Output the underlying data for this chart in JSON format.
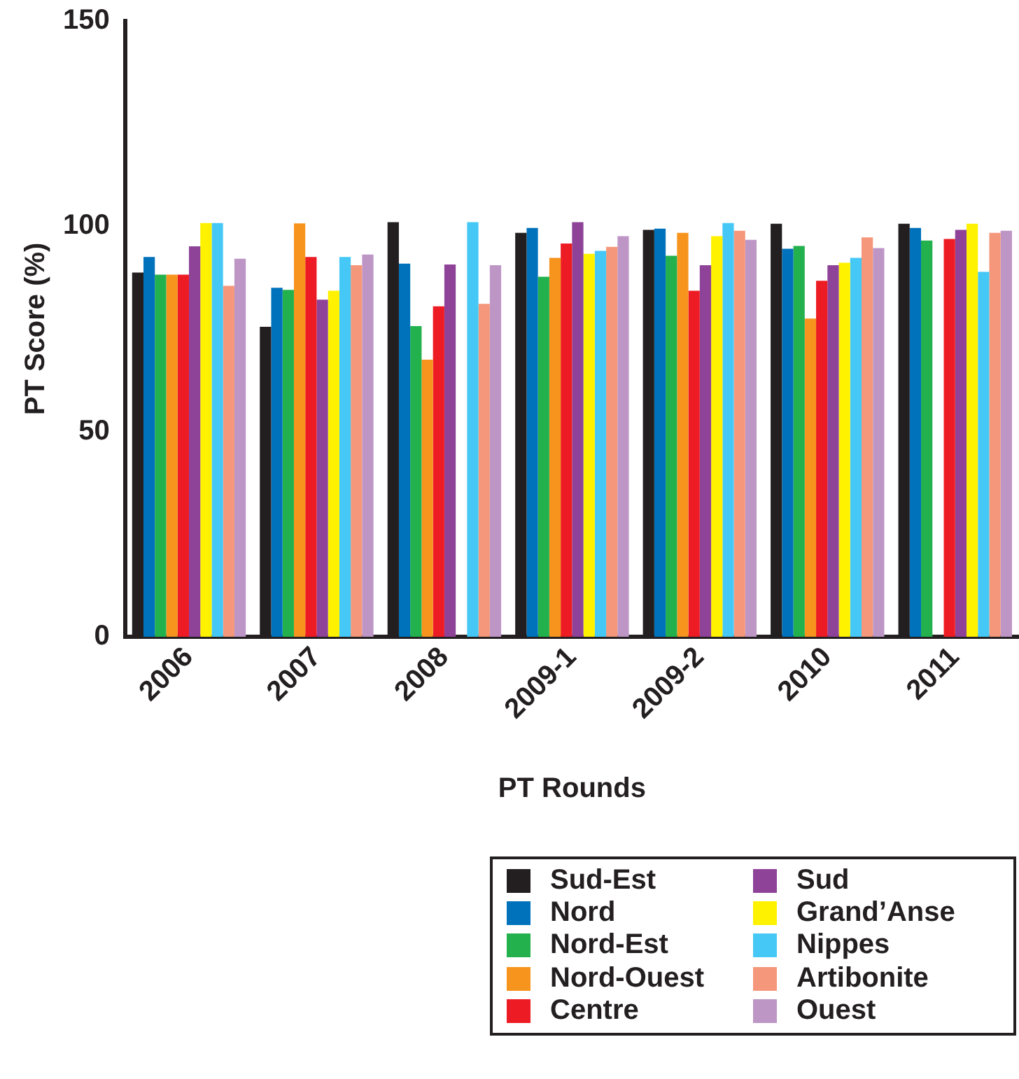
{
  "chart_data": {
    "type": "bar",
    "xlabel": "PT Rounds",
    "ylabel": "PT Score (%)",
    "categories": [
      "2006",
      "2007",
      "2008",
      "2009-1",
      "2009-2",
      "2010",
      "2011"
    ],
    "ylim": [
      0,
      150
    ],
    "yticks": [
      0,
      50,
      100,
      150
    ],
    "grid": false,
    "legend": "bottom right",
    "series": [
      {
        "name": "Sud-Est",
        "color": "#231f20",
        "values": [
          88.7,
          75.5,
          101,
          98.4,
          99.1,
          100.6,
          100.6
        ]
      },
      {
        "name": "Nord",
        "color": "#0072bc",
        "values": [
          92.5,
          85,
          90.9,
          99.6,
          99.4,
          94.5,
          99.6
        ]
      },
      {
        "name": "Nord-Est",
        "color": "#22b14c",
        "values": [
          88.2,
          84.5,
          75.7,
          87.7,
          92.8,
          95.2,
          96.5
        ]
      },
      {
        "name": "Nord-Ouest",
        "color": "#f7941d",
        "values": [
          88.2,
          100.7,
          67.5,
          92.3,
          98.4,
          77.5,
          null
        ]
      },
      {
        "name": "Centre",
        "color": "#ed1c24",
        "values": [
          88.2,
          92.5,
          80.5,
          95.8,
          84.3,
          86.7,
          96.9
        ]
      },
      {
        "name": "Sud",
        "color": "#8e4398",
        "values": [
          95.1,
          82.1,
          90.7,
          101,
          90.5,
          90.5,
          99.1
        ]
      },
      {
        "name": "Grand’Anse",
        "color": "#fff200",
        "values": [
          100.8,
          84.3,
          null,
          93.3,
          97.6,
          91.1,
          100.6
        ]
      },
      {
        "name": "Nippes",
        "color": "#45c8f5",
        "values": [
          100.8,
          92.5,
          101,
          94,
          100.8,
          92.3,
          88.9
        ]
      },
      {
        "name": "Artibonite",
        "color": "#f5977a",
        "values": [
          85.5,
          90.5,
          81.1,
          95,
          98.9,
          97.3,
          98.4
        ]
      },
      {
        "name": "Ouest",
        "color": "#bd96c6",
        "values": [
          92.1,
          93.1,
          90.5,
          97.6,
          96.7,
          94.7,
          98.9
        ]
      }
    ]
  }
}
